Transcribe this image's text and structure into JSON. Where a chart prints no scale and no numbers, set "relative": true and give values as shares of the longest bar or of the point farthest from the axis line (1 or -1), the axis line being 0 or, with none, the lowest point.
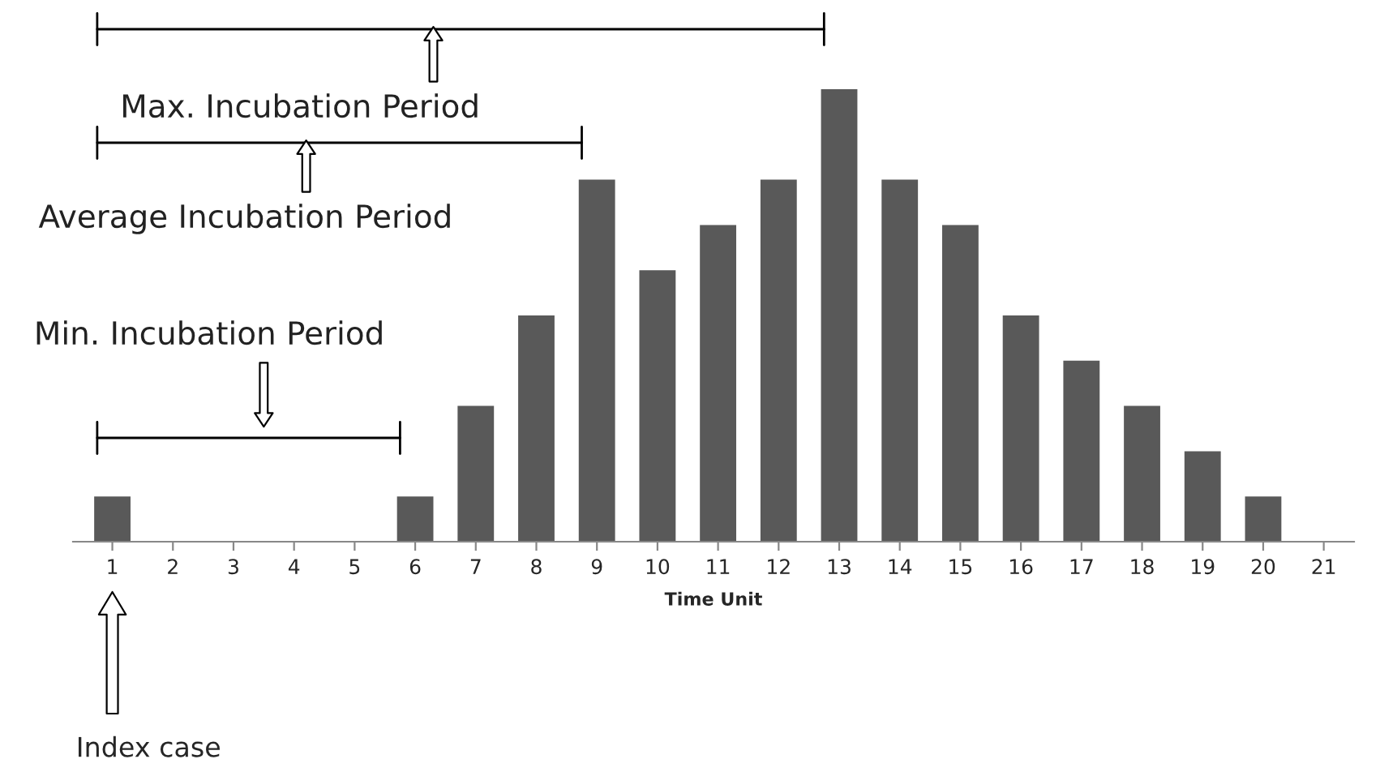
{
  "chart_data": {
    "type": "bar",
    "relative": true,
    "xlabel": "Time Unit",
    "color": "#595959",
    "categories": [
      "1",
      "2",
      "3",
      "4",
      "5",
      "6",
      "7",
      "8",
      "9",
      "10",
      "11",
      "12",
      "13",
      "14",
      "15",
      "16",
      "17",
      "18",
      "19",
      "20",
      "21"
    ],
    "values": [
      0.1,
      0,
      0,
      0,
      0,
      0.1,
      0.3,
      0.5,
      0.8,
      0.6,
      0.7,
      0.8,
      1,
      0.8,
      0.7,
      0.5,
      0.4,
      0.3,
      0.2,
      0.1,
      0
    ],
    "annotations": [
      "Max. Incubation Period",
      "Average Incubation Period",
      "Min. Incubation Period",
      "Index case"
    ],
    "grid": false,
    "legend": false
  }
}
